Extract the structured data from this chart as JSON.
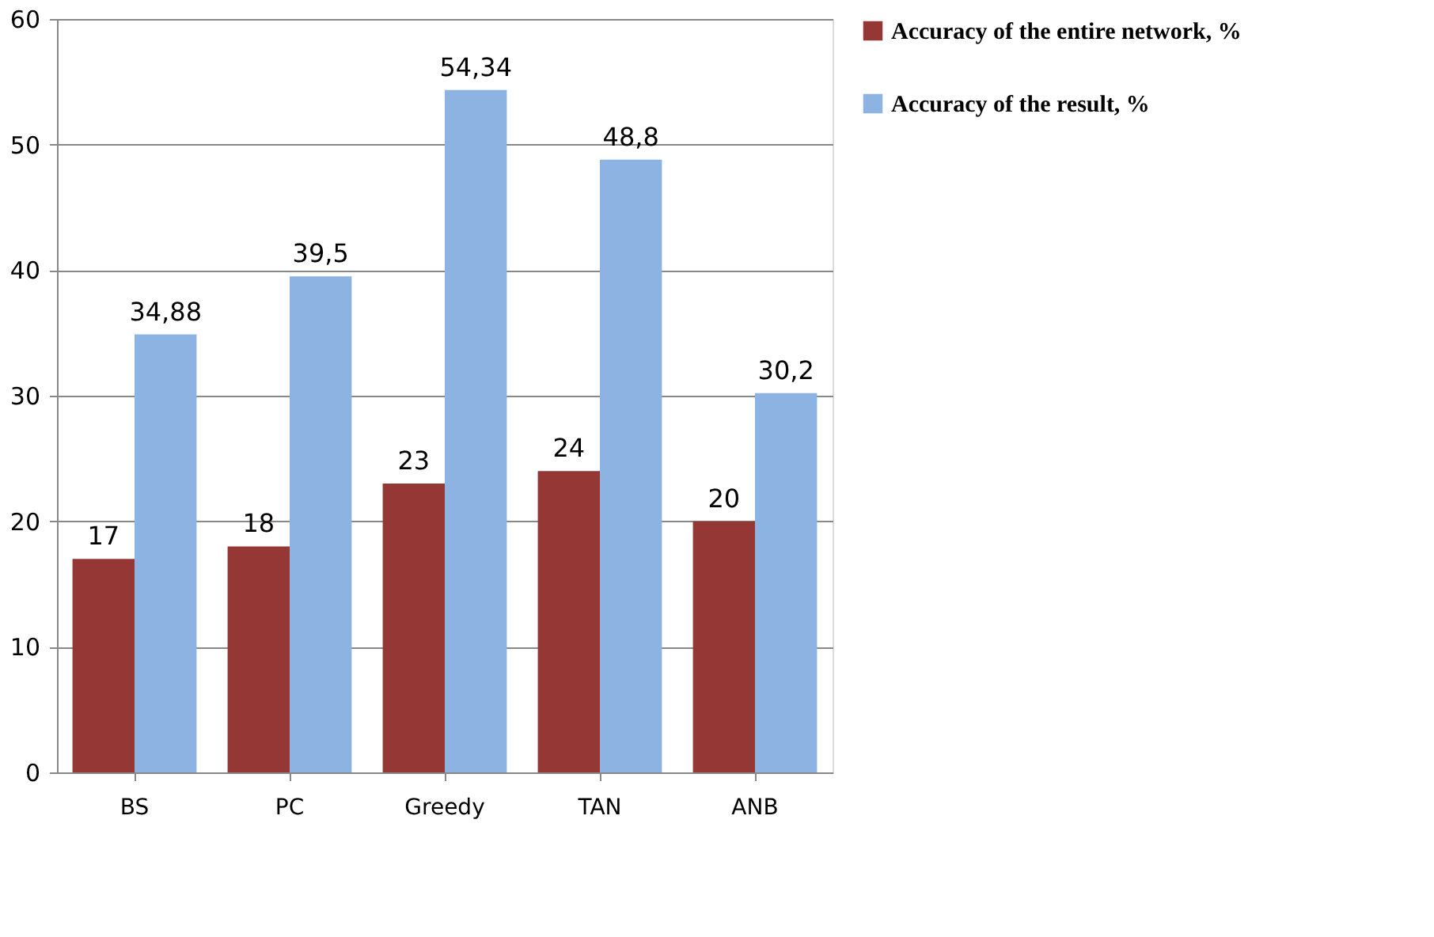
{
  "chart_data": {
    "type": "bar",
    "categories": [
      "BS",
      "PC",
      "Greedy",
      "TAN",
      "ANB"
    ],
    "series": [
      {
        "name": "Accuracy of the entire network, %",
        "color": "#953735",
        "values": [
          17,
          18,
          23,
          24,
          20
        ],
        "value_labels": [
          "17",
          "18",
          "23",
          "24",
          "20"
        ]
      },
      {
        "name": "Accuracy of the result, %",
        "color": "#8db3e2",
        "values": [
          34.88,
          39.5,
          54.34,
          48.8,
          30.2
        ],
        "value_labels": [
          "34,88",
          "39,5",
          "54,34",
          "48,8",
          "30,2"
        ]
      }
    ],
    "ylim": [
      0,
      60
    ],
    "yticks": [
      0,
      10,
      20,
      30,
      40,
      50,
      60
    ],
    "grid": "y",
    "legend": "right"
  }
}
